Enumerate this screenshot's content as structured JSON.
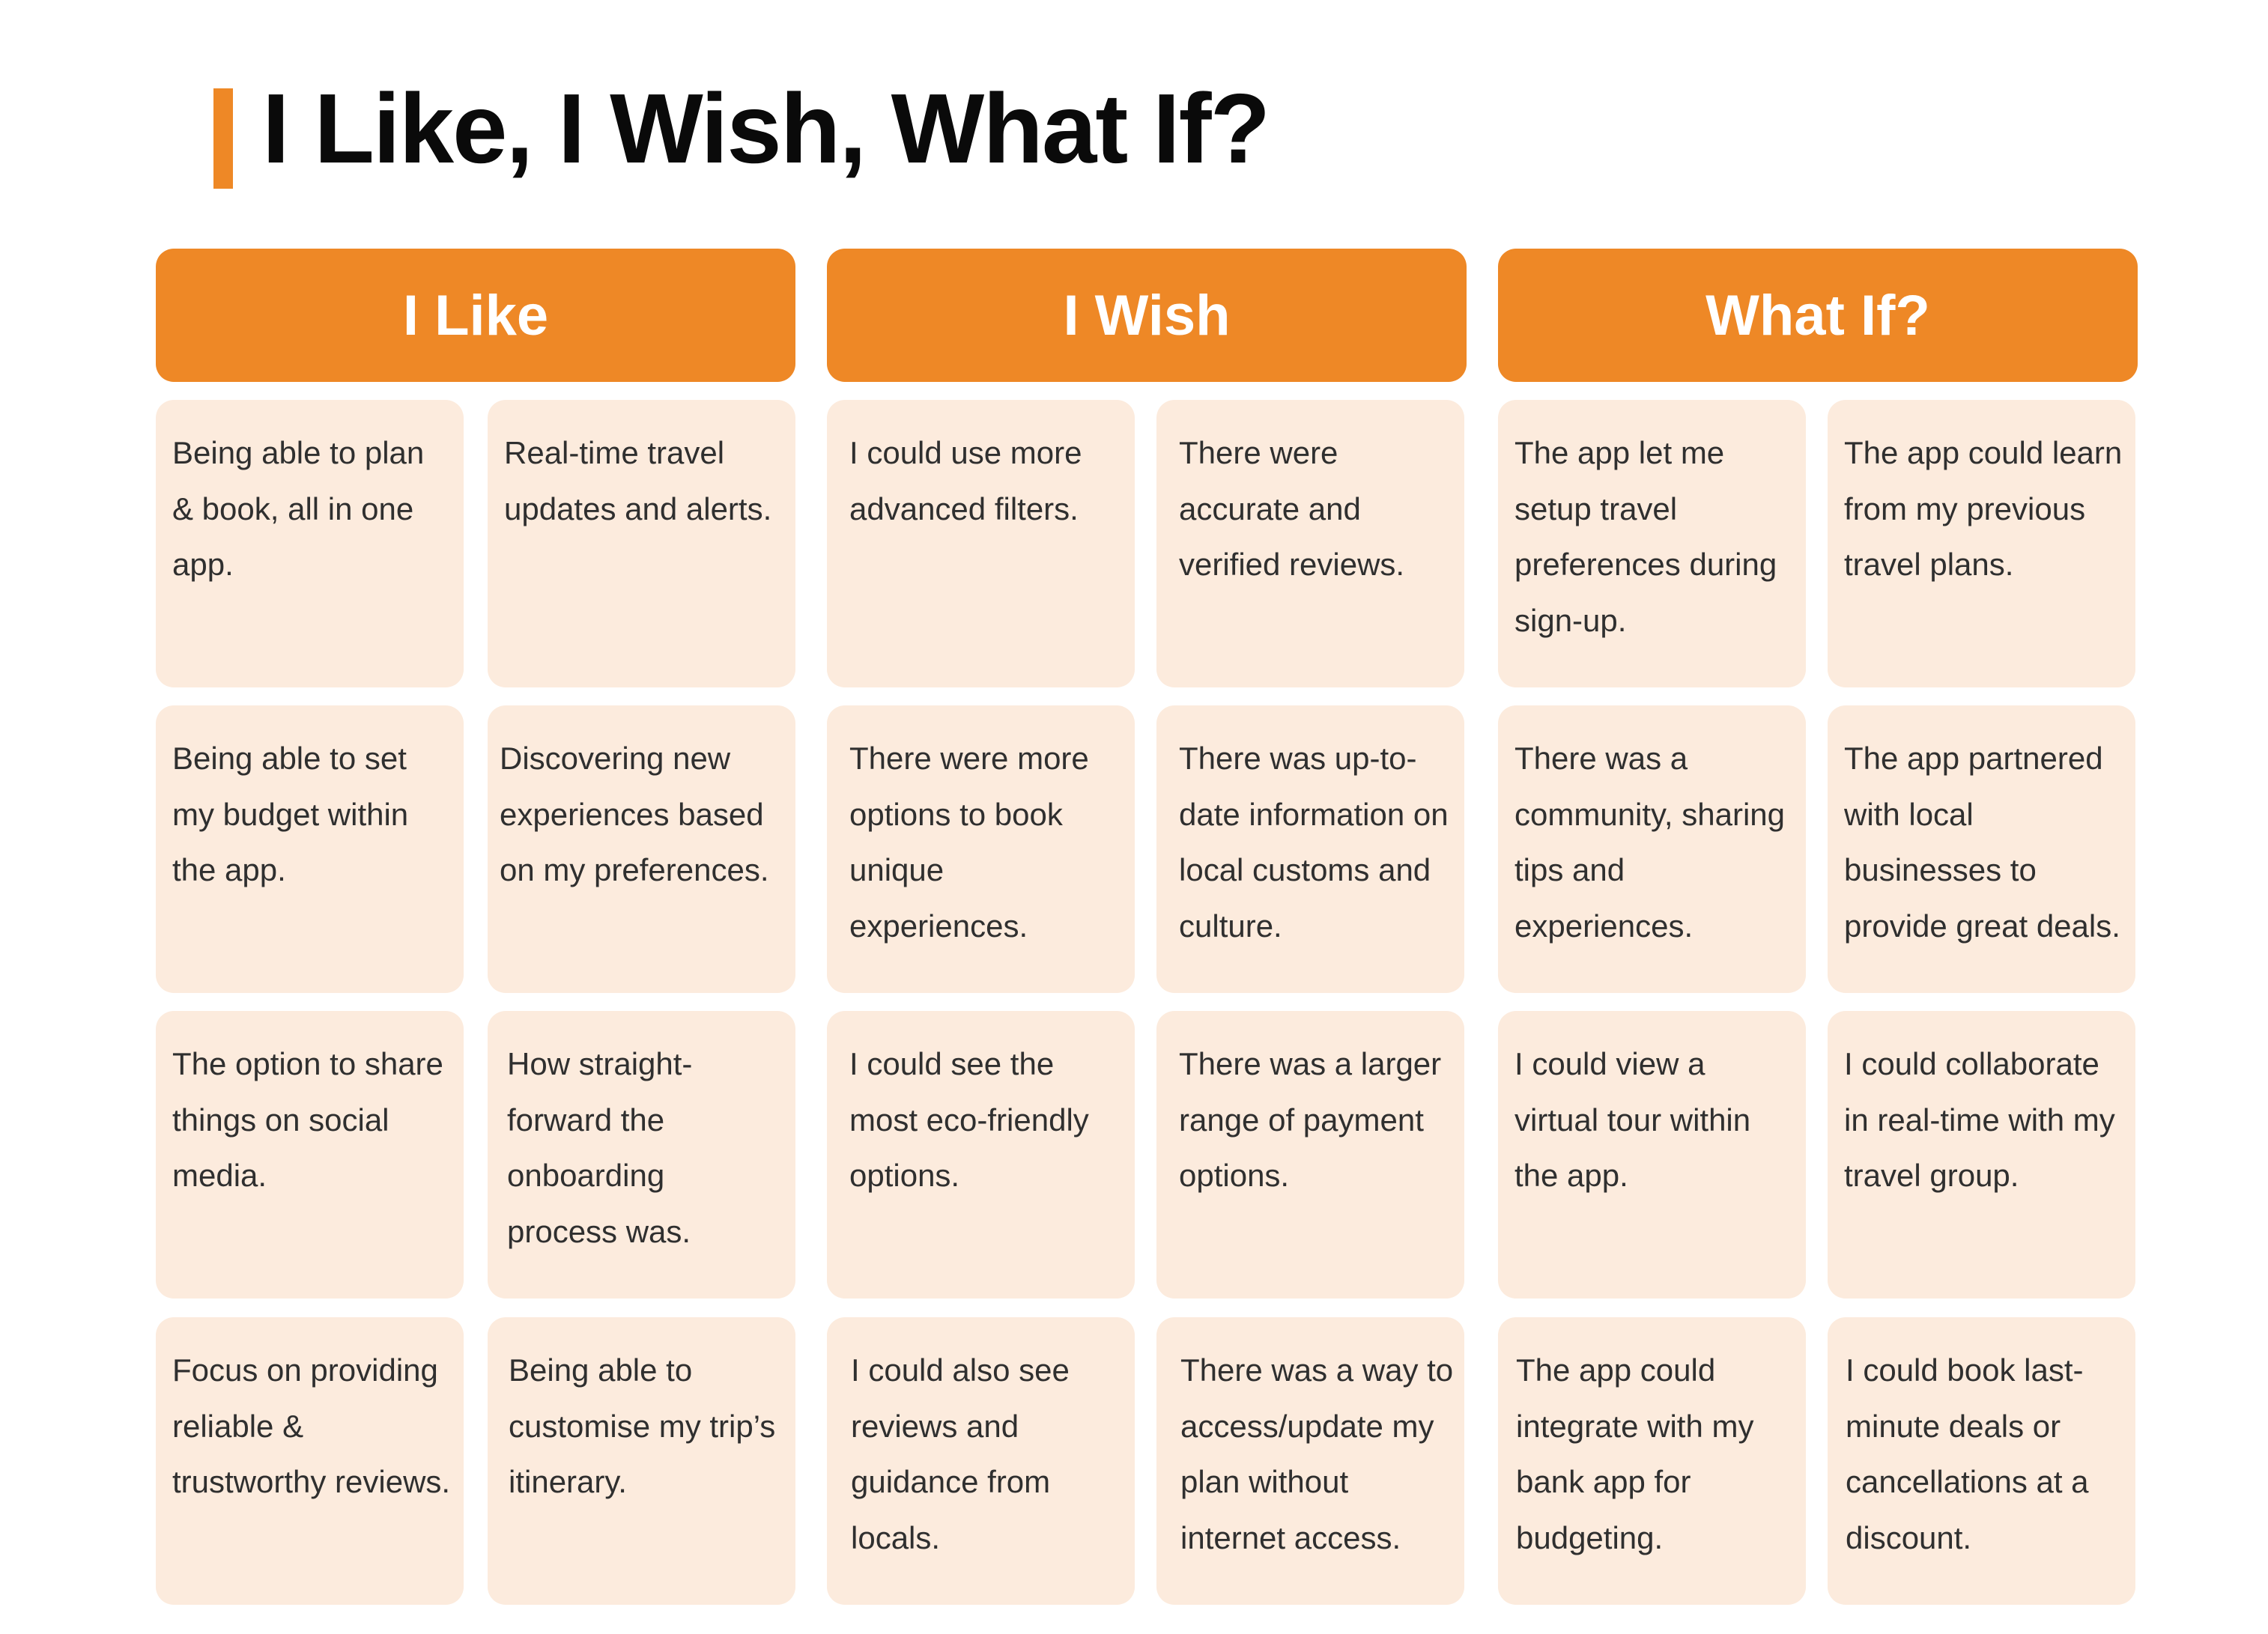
{
  "title": "I Like, I Wish, What If?",
  "accent_color": "#EE8826",
  "note_color": "#FCEBDD",
  "columns": [
    {
      "heading": "I Like",
      "notes": [
        "Being able to plan & book, all in one app.",
        "Real-time travel updates and alerts.",
        "Being able to set my budget within the app.",
        "Discovering new experiences based on my preferences.",
        "The option to share things on social media.",
        "How straight-forward the onboarding process was.",
        "Focus on providing reliable & trustworthy reviews.",
        "Being able to customise my trip’s itinerary."
      ]
    },
    {
      "heading": "I Wish",
      "notes": [
        "I could use more advanced filters.",
        "There were accurate and verified reviews.",
        "There were more options to book unique experiences.",
        "There was up-to-date information on local customs and culture.",
        "I could see the most eco-friendly options.",
        "There was a larger range of payment options.",
        "I could also see reviews and guidance from locals.",
        "There was a way to access/update my plan without internet access."
      ]
    },
    {
      "heading": "What If?",
      "notes": [
        "The app let me setup travel preferences during sign-up.",
        "The app could learn from my previous travel plans.",
        "There was a community, sharing tips and experiences.",
        "The app partnered with local businesses to provide great deals.",
        "I could view a virtual tour within the app.",
        "I could collaborate in real-time with my travel group.",
        "The app could integrate with my bank app for budgeting.",
        "I could book last-minute deals or cancellations at a discount."
      ]
    }
  ]
}
